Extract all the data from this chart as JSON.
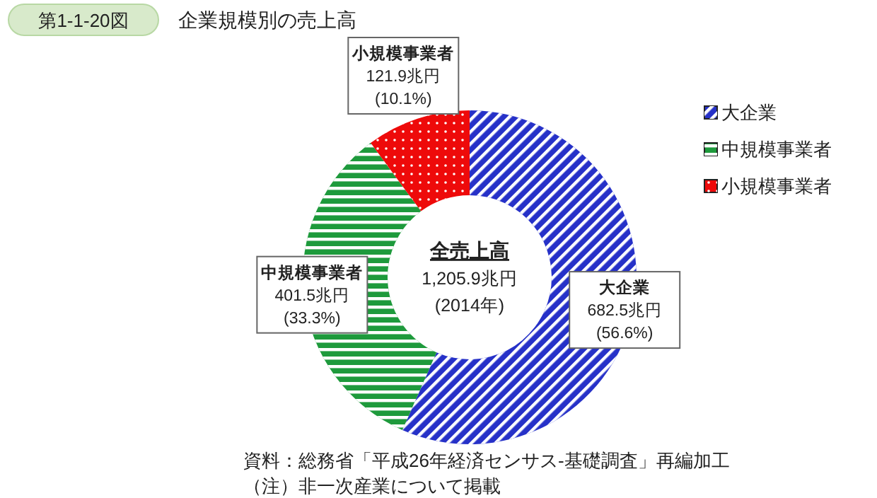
{
  "chart_data": {
    "type": "donut",
    "subtitle": "第1-1-20図",
    "title": "企業規模別の売上高",
    "categories": [
      "大企業",
      "中規模事業者",
      "小規模事業者"
    ],
    "values": [
      682.5,
      401.5,
      121.9
    ],
    "colors": [
      "#2631c8",
      "#1e9a3c",
      "#ee0a0a"
    ],
    "value_labels": [
      "682.5兆円\n(56.6%)",
      "401.5兆円\n(33.3%)",
      "121.9兆円\n(10.1%)"
    ],
    "legend": "top right",
    "annotations": [
      "全売上高",
      "1,205.9兆円",
      "(2014年)",
      "資料：総務省「平成26年経済センサス‐基礎調査」再編加工",
      "（注）非一次産業について掲載"
    ]
  }
}
